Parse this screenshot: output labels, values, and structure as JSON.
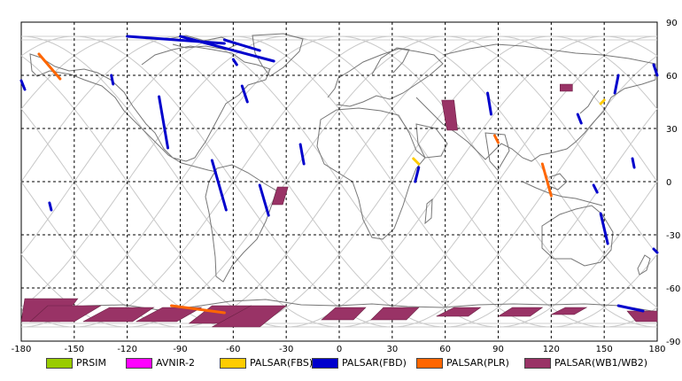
{
  "map": {
    "x_ticks": [
      "-180",
      "-150",
      "-120",
      "-90",
      "-60",
      "-30",
      "0",
      "30",
      "60",
      "90",
      "120",
      "150",
      "180"
    ],
    "y_ticks": [
      "90",
      "60",
      "30",
      "0",
      "-30",
      "-60",
      "-90"
    ],
    "x_range": [
      -180,
      180
    ],
    "y_range": [
      -90,
      90
    ],
    "grid": "dashed, every 30 degrees",
    "background_tracks": "gray orbit ground tracks"
  },
  "legend": [
    {
      "label": "PRSIM",
      "color": "#99cc00"
    },
    {
      "label": "AVNIR-2",
      "color": "#ff00ff"
    },
    {
      "label": "PALSAR(FBS)",
      "color": "#ffcc00"
    },
    {
      "label": "PALSAR(FBD)",
      "color": "#0000cc"
    },
    {
      "label": "PALSAR(PLR)",
      "color": "#ff6600"
    },
    {
      "label": "PALSAR(WB1/WB2)",
      "color": "#993366"
    }
  ],
  "observations": [
    {
      "mode": "PALSAR(FBD)",
      "lon1": -120,
      "lat1": 82,
      "lon2": -65,
      "lat2": 78
    },
    {
      "mode": "PALSAR(FBD)",
      "lon1": -90,
      "lat1": 82,
      "lon2": -37,
      "lat2": 68
    },
    {
      "mode": "PALSAR(FBD)",
      "lon1": -65,
      "lat1": 80,
      "lon2": -45,
      "lat2": 74
    },
    {
      "mode": "PALSAR(FBD)",
      "lon1": -60,
      "lat1": 69,
      "lon2": -58,
      "lat2": 66
    },
    {
      "mode": "PALSAR(FBD)",
      "lon1": -180,
      "lat1": 57,
      "lon2": -178,
      "lat2": 52
    },
    {
      "mode": "PALSAR(FBD)",
      "lon1": -129,
      "lat1": 60,
      "lon2": -128,
      "lat2": 55
    },
    {
      "mode": "PALSAR(FBD)",
      "lon1": -102,
      "lat1": 48,
      "lon2": -97,
      "lat2": 19
    },
    {
      "mode": "PALSAR(FBD)",
      "lon1": -55,
      "lat1": 54,
      "lon2": -52,
      "lat2": 45
    },
    {
      "mode": "PALSAR(FBD)",
      "lon1": -22,
      "lat1": 21,
      "lon2": -20,
      "lat2": 10
    },
    {
      "mode": "PALSAR(FBD)",
      "lon1": -72,
      "lat1": 12,
      "lon2": -64,
      "lat2": -16
    },
    {
      "mode": "PALSAR(FBD)",
      "lon1": -45,
      "lat1": -2,
      "lon2": -40,
      "lat2": -19
    },
    {
      "mode": "PALSAR(FBD)",
      "lon1": -164,
      "lat1": -12,
      "lon2": -163,
      "lat2": -16
    },
    {
      "mode": "PALSAR(FBD)",
      "lon1": 45,
      "lat1": 8,
      "lon2": 43,
      "lat2": 0
    },
    {
      "mode": "PALSAR(FBD)",
      "lon1": 84,
      "lat1": 50,
      "lon2": 86,
      "lat2": 38
    },
    {
      "mode": "PALSAR(FBD)",
      "lon1": 158,
      "lat1": 60,
      "lon2": 156,
      "lat2": 50
    },
    {
      "mode": "PALSAR(FBD)",
      "lon1": 178,
      "lat1": 66,
      "lon2": 180,
      "lat2": 60
    },
    {
      "mode": "PALSAR(FBD)",
      "lon1": 135,
      "lat1": 38,
      "lon2": 137,
      "lat2": 33
    },
    {
      "mode": "PALSAR(FBD)",
      "lon1": 166,
      "lat1": 13,
      "lon2": 167,
      "lat2": 8
    },
    {
      "mode": "PALSAR(FBD)",
      "lon1": 144,
      "lat1": -2,
      "lon2": 146,
      "lat2": -6
    },
    {
      "mode": "PALSAR(FBD)",
      "lon1": 148,
      "lat1": -18,
      "lon2": 152,
      "lat2": -35
    },
    {
      "mode": "PALSAR(FBD)",
      "lon1": 178,
      "lat1": -38,
      "lon2": 180,
      "lat2": -40
    },
    {
      "mode": "PALSAR(FBD)",
      "lon1": 158,
      "lat1": -70,
      "lon2": 172,
      "lat2": -73
    },
    {
      "mode": "PALSAR(FBS)",
      "lon1": 42,
      "lat1": 13,
      "lon2": 45,
      "lat2": 10
    },
    {
      "mode": "PALSAR(FBS)",
      "lon1": 150,
      "lat1": 46,
      "lon2": 148,
      "lat2": 44
    },
    {
      "mode": "PALSAR(PLR)",
      "lon1": -170,
      "lat1": 72,
      "lon2": -158,
      "lat2": 58
    },
    {
      "mode": "PALSAR(PLR)",
      "lon1": 115,
      "lat1": 10,
      "lon2": 120,
      "lat2": -8
    },
    {
      "mode": "PALSAR(PLR)",
      "lon1": 88,
      "lat1": 26,
      "lon2": 90,
      "lat2": 22
    },
    {
      "mode": "PALSAR(PLR)",
      "lon1": -95,
      "lat1": -70,
      "lon2": -65,
      "lat2": -74
    }
  ],
  "wide_swaths": [
    {
      "mode": "PALSAR(WB1/WB2)",
      "polygon": [
        [
          -178,
          -66
        ],
        [
          -148,
          -66
        ],
        [
          -158,
          -79
        ],
        [
          -180,
          -79
        ]
      ]
    },
    {
      "mode": "PALSAR(WB1/WB2)",
      "polygon": [
        [
          -165,
          -70
        ],
        [
          -175,
          -79
        ],
        [
          -150,
          -79
        ],
        [
          -135,
          -70
        ]
      ]
    },
    {
      "mode": "PALSAR(WB1/WB2)",
      "polygon": [
        [
          -130,
          -71
        ],
        [
          -105,
          -71
        ],
        [
          -117,
          -79
        ],
        [
          -145,
          -79
        ]
      ]
    },
    {
      "mode": "PALSAR(WB1/WB2)",
      "polygon": [
        [
          -100,
          -71
        ],
        [
          -78,
          -71
        ],
        [
          -92,
          -79
        ],
        [
          -115,
          -79
        ]
      ]
    },
    {
      "mode": "PALSAR(WB1/WB2)",
      "polygon": [
        [
          -72,
          -70
        ],
        [
          -50,
          -70
        ],
        [
          -62,
          -80
        ],
        [
          -85,
          -80
        ]
      ]
    },
    {
      "mode": "PALSAR(WB1/WB2)",
      "polygon": [
        [
          -50,
          -70
        ],
        [
          -30,
          -70
        ],
        [
          -45,
          -82
        ],
        [
          -72,
          -82
        ]
      ]
    },
    {
      "mode": "PALSAR(WB1/WB2)",
      "polygon": [
        [
          25,
          -71
        ],
        [
          45,
          -71
        ],
        [
          38,
          -78
        ],
        [
          18,
          -78
        ]
      ]
    },
    {
      "mode": "PALSAR(WB1/WB2)",
      "polygon": [
        [
          -2,
          -71
        ],
        [
          15,
          -71
        ],
        [
          8,
          -78
        ],
        [
          -10,
          -78
        ]
      ]
    },
    {
      "mode": "PALSAR(WB1/WB2)",
      "polygon": [
        [
          65,
          -71
        ],
        [
          80,
          -71
        ],
        [
          73,
          -76
        ],
        [
          55,
          -76
        ]
      ]
    },
    {
      "mode": "PALSAR(WB1/WB2)",
      "polygon": [
        [
          98,
          -71
        ],
        [
          115,
          -71
        ],
        [
          108,
          -76
        ],
        [
          90,
          -76
        ]
      ]
    },
    {
      "mode": "PALSAR(WB1/WB2)",
      "polygon": [
        [
          128,
          -71
        ],
        [
          140,
          -71
        ],
        [
          133,
          -75
        ],
        [
          120,
          -75
        ]
      ]
    },
    {
      "mode": "PALSAR(WB1/WB2)",
      "polygon": [
        [
          163,
          -73
        ],
        [
          180,
          -73
        ],
        [
          180,
          -79
        ],
        [
          168,
          -79
        ]
      ]
    },
    {
      "mode": "PALSAR(WB1/WB2)",
      "polygon": [
        [
          58,
          46
        ],
        [
          65,
          46
        ],
        [
          67,
          29
        ],
        [
          61,
          29
        ]
      ]
    },
    {
      "mode": "PALSAR(WB1/WB2)",
      "polygon": [
        [
          125,
          55
        ],
        [
          132,
          55
        ],
        [
          132,
          51
        ],
        [
          125,
          51
        ]
      ]
    },
    {
      "mode": "PALSAR(WB1/WB2)",
      "polygon": [
        [
          -35,
          -3
        ],
        [
          -29,
          -3
        ],
        [
          -32,
          -13
        ],
        [
          -38,
          -13
        ]
      ]
    }
  ]
}
